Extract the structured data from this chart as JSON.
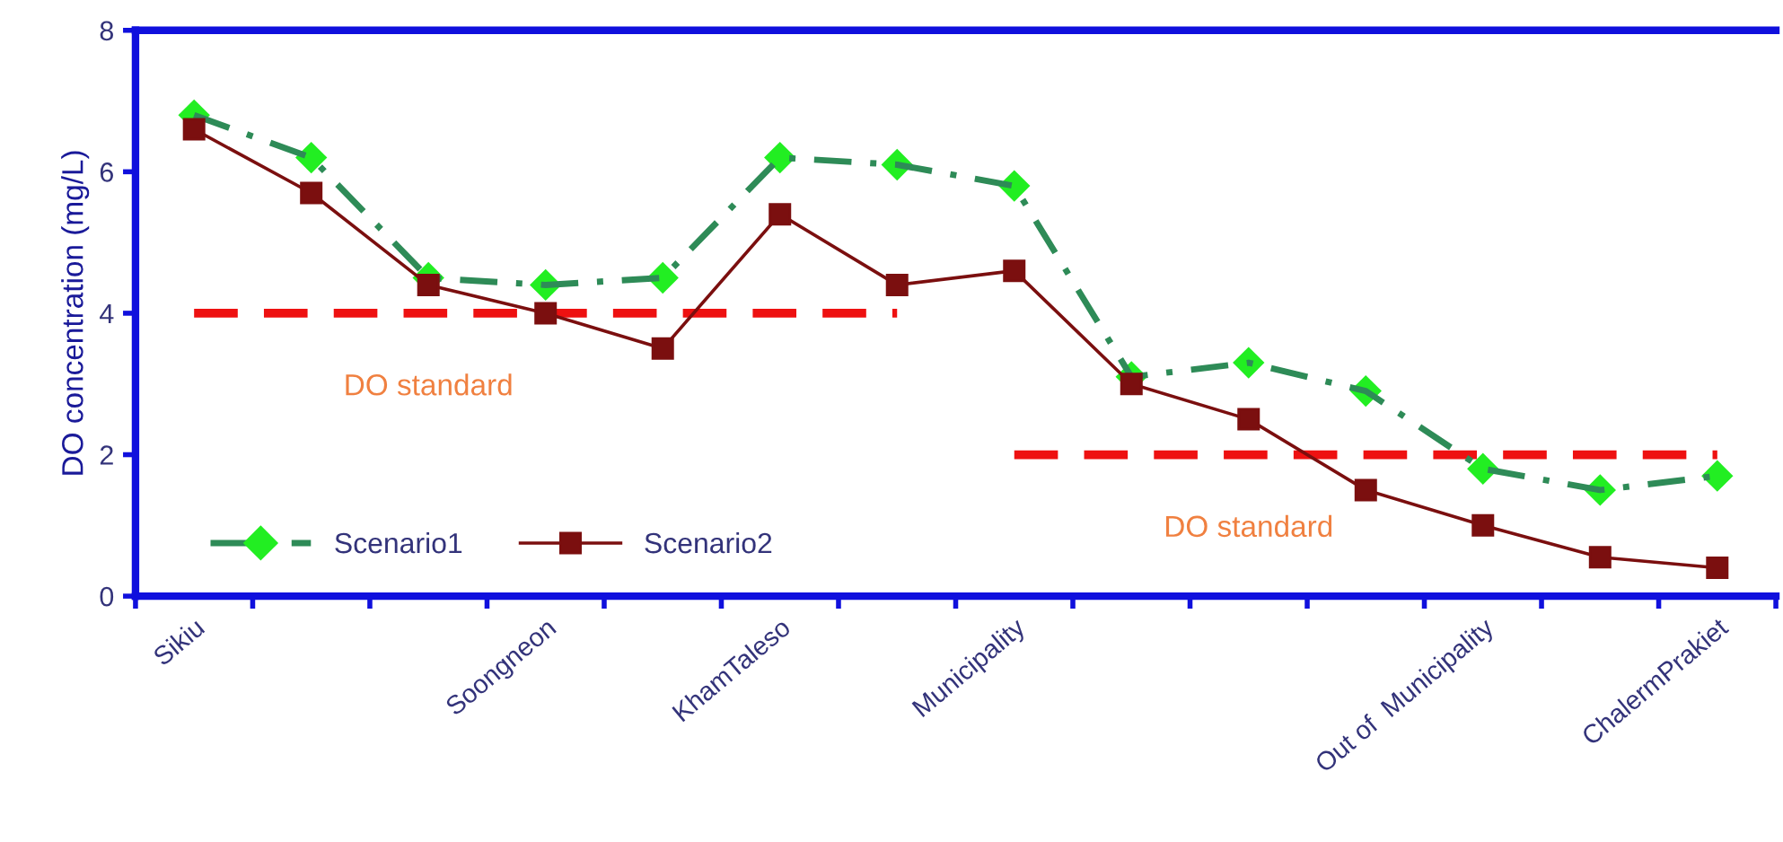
{
  "chart_data": {
    "type": "line",
    "ylabel": "DO concentration (mg/L)",
    "categories": [
      "Sikiu",
      null,
      null,
      "Soongneon",
      null,
      "KhamTaleso",
      null,
      "Municipality",
      null,
      null,
      null,
      "Out of  Municipality",
      null,
      "ChalermPrakiet"
    ],
    "series": [
      {
        "name": "Scenario1",
        "color": "#2e8b57",
        "colors": [
          "#22ee22",
          "#22ee22",
          "#22ee22",
          "#22ee22",
          "#22ee22",
          "#22ee22",
          "#22ee22",
          "#22ee22",
          "#22ee22",
          "#22ee22",
          "#22ee22",
          "#22ee22",
          "#22ee22",
          "#22ee22"
        ],
        "marker": "diamond",
        "line_style": "dashdot",
        "values": [
          6.8,
          6.2,
          4.5,
          4.4,
          4.5,
          6.2,
          6.1,
          5.8,
          3.1,
          3.3,
          2.9,
          1.8,
          1.5,
          1.7
        ]
      },
      {
        "name": "Scenario2",
        "color": "#7b0f0f",
        "marker": "square",
        "line_style": "solid",
        "values": [
          6.6,
          5.7,
          4.4,
          4.0,
          3.5,
          5.4,
          4.4,
          4.6,
          3.0,
          2.5,
          1.5,
          1.0,
          0.55,
          0.4
        ]
      },
      {
        "color": "#ee1111",
        "marker": "none",
        "line_style": "dashed",
        "values": [
          4,
          4,
          4,
          4,
          4,
          4,
          4,
          null,
          null,
          null,
          null,
          null,
          null,
          null
        ]
      },
      {
        "color": "#ee1111",
        "marker": "none",
        "line_style": "dashed",
        "values": [
          null,
          null,
          null,
          null,
          null,
          null,
          null,
          2,
          2,
          2,
          2,
          2,
          2,
          2
        ]
      }
    ],
    "annotations": [
      "DO standard",
      "DO standard"
    ],
    "ylim": [
      0,
      8
    ],
    "yticks": [
      0,
      2,
      4,
      6,
      8
    ],
    "grid": false,
    "legend": "bottom left"
  }
}
